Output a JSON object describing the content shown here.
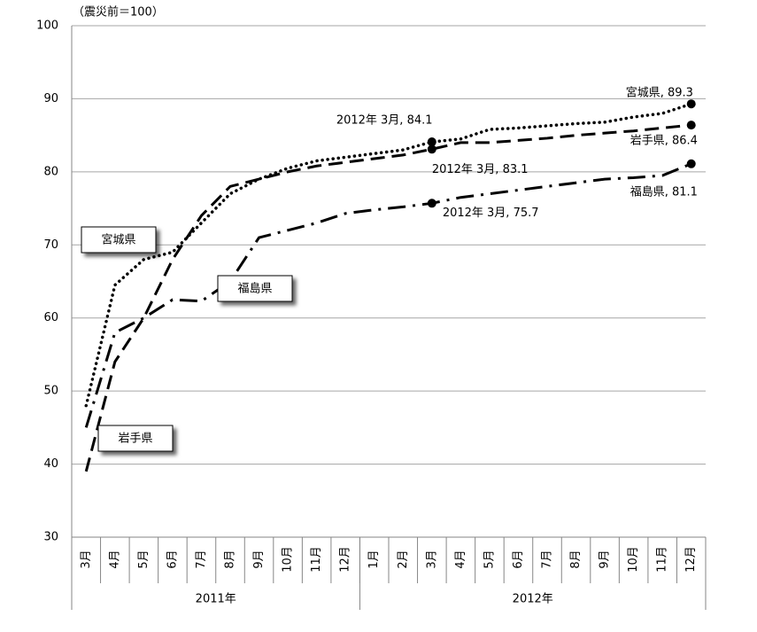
{
  "chart_data": {
    "type": "line",
    "y_label": "（震災前＝100）",
    "categories": [
      "3月",
      "4月",
      "5月",
      "6月",
      "7月",
      "8月",
      "9月",
      "10月",
      "11月",
      "12月",
      "1月",
      "2月",
      "3月",
      "4月",
      "5月",
      "6月",
      "7月",
      "8月",
      "9月",
      "10月",
      "11月",
      "12月"
    ],
    "groups": [
      {
        "label": "2011年",
        "span": 10
      },
      {
        "label": "2012年",
        "span": 12
      }
    ],
    "ylim": [
      30,
      100
    ],
    "yticks": [
      30,
      40,
      50,
      60,
      70,
      80,
      90,
      100
    ],
    "grid": true,
    "series": [
      {
        "name": "宮城県",
        "color": "#000000",
        "style": "dotted",
        "values": [
          48,
          64.5,
          68,
          69,
          73,
          77,
          79,
          80.5,
          81.5,
          82,
          82.5,
          83,
          84.1,
          84.5,
          85.8,
          86,
          86.3,
          86.6,
          86.8,
          87.5,
          88,
          89.3
        ],
        "value_labels": [
          null,
          null,
          null,
          null,
          null,
          null,
          null,
          null,
          null,
          null,
          null,
          null,
          "2012年 3月, 84.1",
          null,
          null,
          null,
          null,
          null,
          null,
          null,
          null,
          "宮城県, 89.3"
        ]
      },
      {
        "name": "岩手県",
        "color": "#000000",
        "style": "dashed",
        "values": [
          39,
          54,
          60,
          68,
          74,
          78,
          79,
          80,
          80.8,
          81.3,
          81.8,
          82.3,
          83.1,
          84,
          84,
          84.3,
          84.6,
          85,
          85.3,
          85.6,
          86,
          86.4
        ],
        "value_labels": [
          null,
          null,
          null,
          null,
          null,
          null,
          null,
          null,
          null,
          null,
          null,
          null,
          "2012年 3月, 83.1",
          null,
          null,
          null,
          null,
          null,
          null,
          null,
          null,
          "岩手県, 86.4"
        ]
      },
      {
        "name": "福島県",
        "color": "#000000",
        "style": "dashdot",
        "values": [
          45,
          58,
          60,
          62.5,
          62.3,
          65,
          71,
          72,
          73,
          74.3,
          74.8,
          75.2,
          75.7,
          76.5,
          77,
          77.5,
          78,
          78.5,
          79,
          79.2,
          79.5,
          81.1
        ],
        "value_labels": [
          null,
          null,
          null,
          null,
          null,
          null,
          null,
          null,
          null,
          null,
          null,
          null,
          "2012年 3月, 75.7",
          null,
          null,
          null,
          null,
          null,
          null,
          null,
          null,
          "福島県, 81.1"
        ]
      }
    ]
  }
}
